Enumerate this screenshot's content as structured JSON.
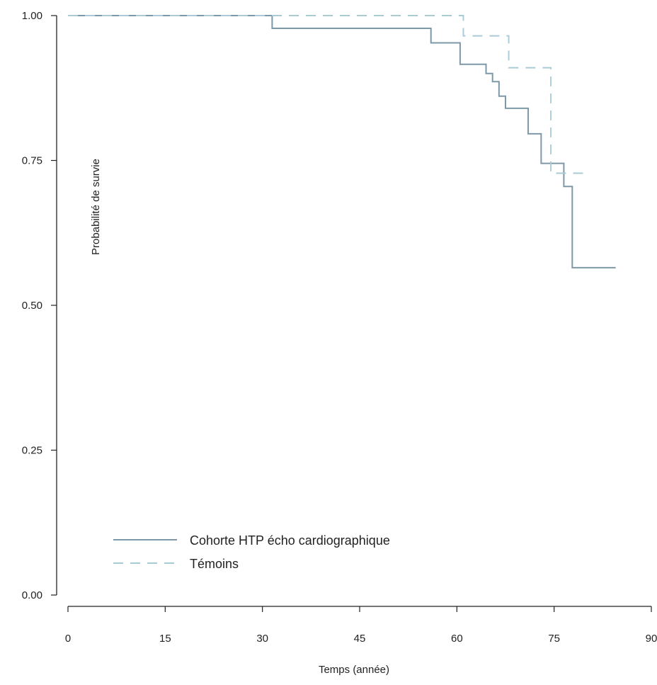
{
  "chart_data": {
    "type": "line",
    "subtype": "kaplan-meier-step",
    "title": "",
    "xlabel": "Temps (année)",
    "ylabel": "Probabilité  de survie",
    "xlim": [
      0,
      90
    ],
    "ylim": [
      0,
      1
    ],
    "x_ticks": [
      0,
      15,
      30,
      45,
      60,
      75,
      90
    ],
    "y_ticks": [
      0.0,
      0.25,
      0.5,
      0.75,
      1.0
    ],
    "x_tick_labels": [
      "0",
      "15",
      "30",
      "45",
      "60",
      "75",
      "90"
    ],
    "y_tick_labels": [
      "0.00",
      "0.25",
      "0.50",
      "0.75",
      "1.00"
    ],
    "grid": false,
    "legend_position": "bottom-left",
    "colors": {
      "cohorte": "#7d99a8",
      "temoins": "#a9cbd6",
      "axis": "#222222"
    },
    "series": [
      {
        "name": "Cohorte HTP écho cardiographique",
        "style": "solid",
        "points": [
          [
            0,
            1.0
          ],
          [
            31.5,
            1.0
          ],
          [
            31.5,
            0.978
          ],
          [
            56.0,
            0.978
          ],
          [
            56.0,
            0.953
          ],
          [
            60.5,
            0.953
          ],
          [
            60.5,
            0.916
          ],
          [
            64.5,
            0.916
          ],
          [
            64.5,
            0.9
          ],
          [
            65.5,
            0.9
          ],
          [
            65.5,
            0.886
          ],
          [
            66.5,
            0.886
          ],
          [
            66.5,
            0.861
          ],
          [
            67.5,
            0.861
          ],
          [
            67.5,
            0.84
          ],
          [
            71.0,
            0.84
          ],
          [
            71.0,
            0.796
          ],
          [
            73.0,
            0.796
          ],
          [
            73.0,
            0.745
          ],
          [
            76.5,
            0.745
          ],
          [
            76.5,
            0.705
          ],
          [
            77.8,
            0.705
          ],
          [
            77.8,
            0.565
          ],
          [
            84.5,
            0.565
          ]
        ]
      },
      {
        "name": "Témoins",
        "style": "dashed",
        "points": [
          [
            0,
            1.0
          ],
          [
            61.0,
            1.0
          ],
          [
            61.0,
            0.965
          ],
          [
            68.0,
            0.965
          ],
          [
            68.0,
            0.91
          ],
          [
            74.5,
            0.91
          ],
          [
            74.5,
            0.728
          ],
          [
            80.5,
            0.728
          ]
        ]
      }
    ]
  }
}
